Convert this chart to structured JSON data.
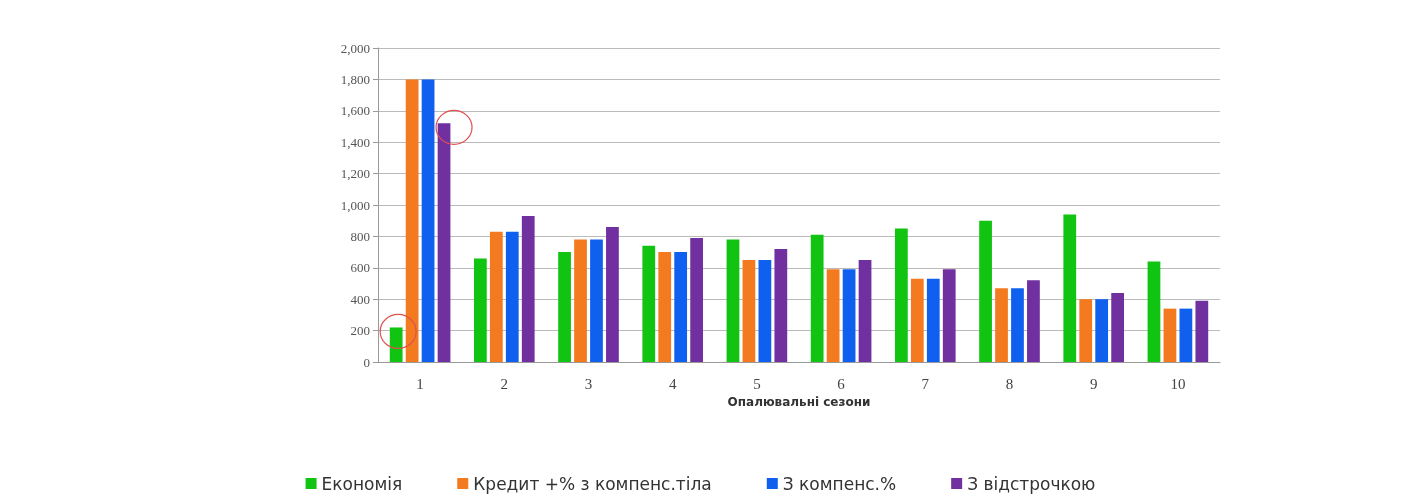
{
  "chart_data": {
    "type": "bar",
    "xlabel": "Опалювальні сезони",
    "categories": [
      "1",
      "2",
      "3",
      "4",
      "5",
      "6",
      "7",
      "8",
      "9",
      "10"
    ],
    "series": [
      {
        "name": "Економія",
        "color": "#11c411",
        "values": [
          220,
          660,
          700,
          740,
          780,
          810,
          850,
          900,
          940,
          640
        ]
      },
      {
        "name": "Кредит +% з компенс.тіла",
        "color": "#f47a20",
        "values": [
          1800,
          830,
          780,
          700,
          650,
          590,
          530,
          470,
          400,
          340
        ]
      },
      {
        "name": "З компенс.%",
        "color": "#1060f0",
        "values": [
          1800,
          830,
          780,
          700,
          650,
          590,
          530,
          470,
          400,
          340
        ]
      },
      {
        "name": "З відстрочкою",
        "color": "#7030a0",
        "values": [
          1520,
          930,
          860,
          790,
          720,
          650,
          590,
          520,
          440,
          390
        ]
      }
    ],
    "ylim": [
      0,
      2000
    ],
    "yticks": [
      0,
      200,
      400,
      600,
      800,
      {
        "value": 1000,
        "label": "1,000"
      },
      {
        "value": 1200,
        "label": "1,200"
      },
      {
        "value": 1400,
        "label": "1,400"
      },
      {
        "value": 1600,
        "label": "1,600"
      },
      {
        "value": 1800,
        "label": "1,800"
      },
      {
        "value": 2000,
        "label": "2,000"
      }
    ],
    "grid": "y",
    "legend": "bottom"
  }
}
